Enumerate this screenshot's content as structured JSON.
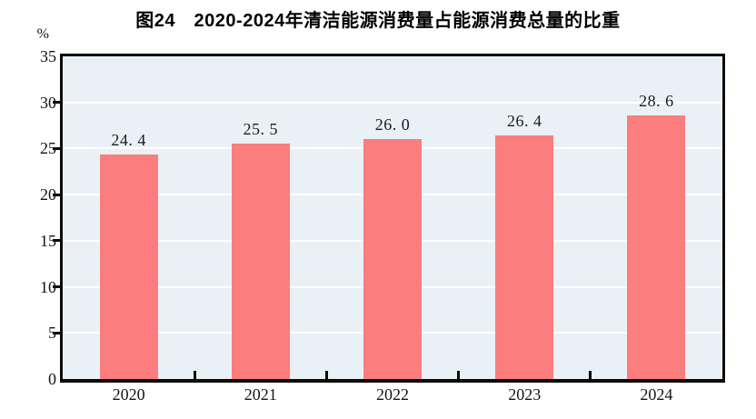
{
  "figure": {
    "title": "图24　2020-2024年清洁能源消费量占能源消费总量的比重",
    "unit_label": "%"
  },
  "colors": {
    "bar": "#FB7D7D",
    "plot_background": "#EAF1F6",
    "gridline": "#FFFFFF",
    "axis": "#0A0A0A",
    "text": "#151515",
    "page_background": "#FFFFFF"
  },
  "chart_data": {
    "type": "bar",
    "title": "图24　2020-2024年清洁能源消费量占能源消费总量的比重",
    "categories": [
      "2020",
      "2021",
      "2022",
      "2023",
      "2024"
    ],
    "values": [
      24.4,
      25.5,
      26.0,
      26.4,
      28.6
    ],
    "value_labels": [
      "24. 4",
      "25. 5",
      "26. 0",
      "26. 4",
      "28. 6"
    ],
    "xlabel": "",
    "ylabel": "%",
    "ylim": [
      0,
      35
    ],
    "yticks": [
      0,
      5,
      10,
      15,
      20,
      25,
      30,
      35
    ],
    "grid": true,
    "gridline_color": "white",
    "legend": "none",
    "bar_color": "#FB7D7D",
    "data_labels_position": "above-bar",
    "x_ticks_between_categories": true
  }
}
